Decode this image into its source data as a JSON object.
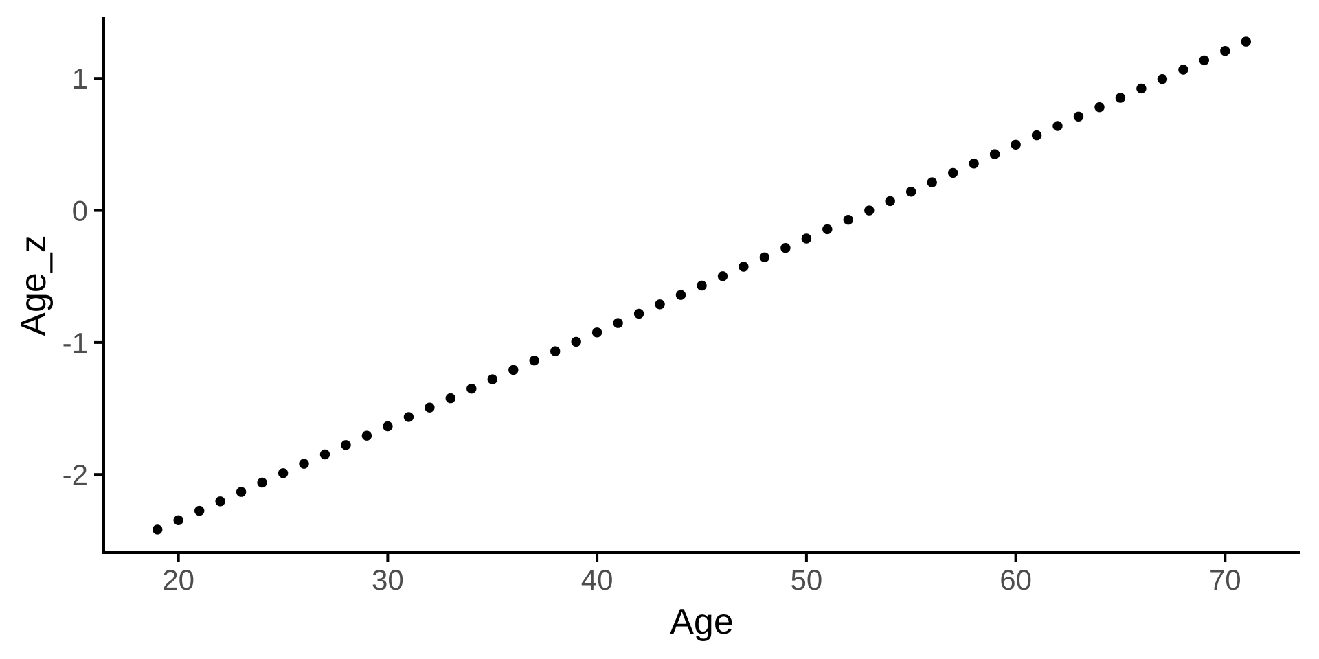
{
  "figure": {
    "background": "#ffffff"
  },
  "chart_data": {
    "type": "scatter",
    "title": "",
    "xlabel": "Age",
    "ylabel": "Age_z",
    "x": [
      19,
      20,
      21,
      22,
      23,
      24,
      25,
      26,
      27,
      28,
      29,
      30,
      31,
      32,
      33,
      34,
      35,
      36,
      37,
      38,
      39,
      40,
      41,
      42,
      43,
      44,
      45,
      46,
      47,
      48,
      49,
      50,
      51,
      52,
      53,
      54,
      55,
      56,
      57,
      58,
      59,
      60,
      61,
      62,
      63,
      64,
      65,
      66,
      67,
      68,
      69,
      70,
      71
    ],
    "y": [
      -2.417,
      -2.346,
      -2.275,
      -2.203,
      -2.132,
      -2.061,
      -1.99,
      -1.919,
      -1.848,
      -1.777,
      -1.706,
      -1.635,
      -1.564,
      -1.493,
      -1.422,
      -1.35,
      -1.279,
      -1.208,
      -1.137,
      -1.066,
      -0.995,
      -0.924,
      -0.853,
      -0.782,
      -0.711,
      -0.64,
      -0.569,
      -0.498,
      -0.426,
      -0.355,
      -0.284,
      -0.213,
      -0.142,
      -0.071,
      0.0,
      0.071,
      0.142,
      0.213,
      0.284,
      0.355,
      0.426,
      0.498,
      0.569,
      0.64,
      0.711,
      0.782,
      0.853,
      0.924,
      0.995,
      1.066,
      1.137,
      1.208,
      1.279
    ],
    "x_ticks": [
      20,
      30,
      40,
      50,
      60,
      70
    ],
    "x_tick_labels": [
      "20",
      "30",
      "40",
      "50",
      "60",
      "70"
    ],
    "y_ticks": [
      1,
      0,
      -1,
      -2
    ],
    "y_tick_labels": [
      "1",
      "0",
      "-1",
      "-2"
    ],
    "xlim": [
      16.4,
      73.6
    ],
    "ylim": [
      -2.602,
      1.464
    ],
    "grid": false,
    "legend": "none",
    "point_color": "#000000",
    "axis_line_color": "#000000",
    "tick_color": "#000000",
    "tick_label_color": "#4d4d4d",
    "axis_title_color": "#000000",
    "plot_background": "#ffffff"
  }
}
